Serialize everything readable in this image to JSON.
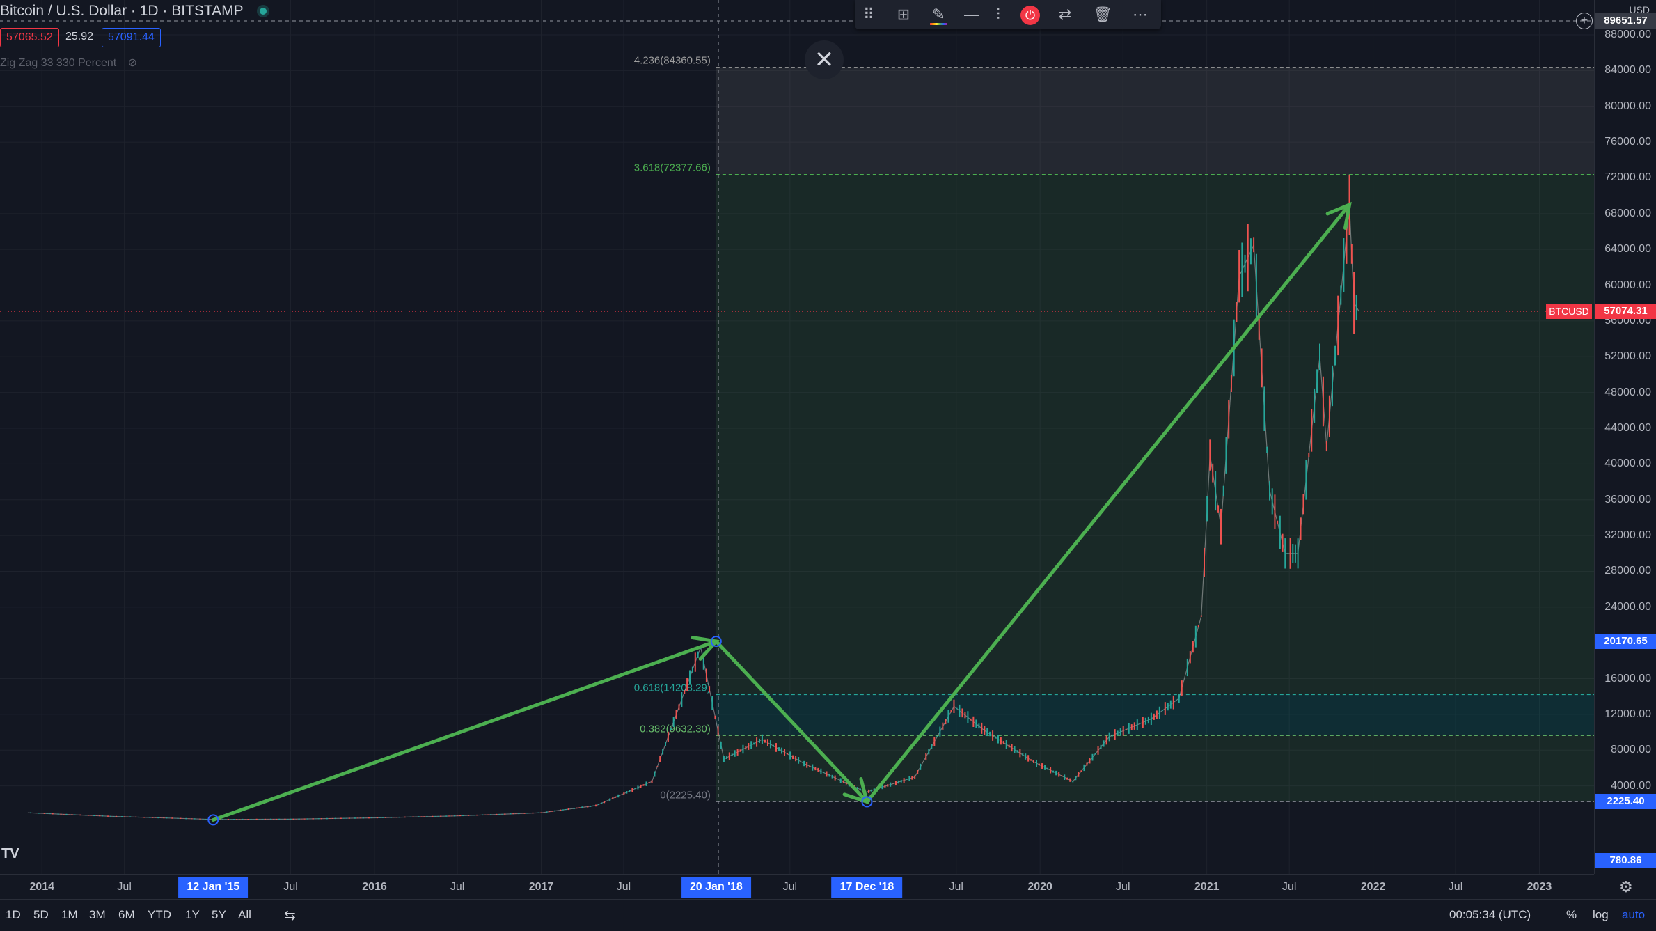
{
  "legend": {
    "title": "Bitcoin / U.S. Dollar · 1D · BITSTAMP",
    "bid": "57065.52",
    "spread": "25.92",
    "ask": "57091.44",
    "indicator": "Zig Zag 33 330 Percent",
    "status_color": "#26a69a"
  },
  "toolbar": {
    "icons": [
      "drag-handle-icon",
      "template-icon",
      "pencil-icon",
      "line-width-icon",
      "alert-icon",
      "sync-icon",
      "trash-icon",
      "more-icon"
    ]
  },
  "chart_data": {
    "type": "line",
    "symbol": "BTCUSD",
    "ylim": [
      0,
      90000
    ],
    "xlim": [
      "2013-10-01",
      "2023-05-01"
    ],
    "y_ticks": [
      "4000.00",
      "8000.00",
      "12000.00",
      "16000.00",
      "24000.00",
      "28000.00",
      "32000.00",
      "36000.00",
      "40000.00",
      "44000.00",
      "48000.00",
      "52000.00",
      "56000.00",
      "60000.00",
      "64000.00",
      "68000.00",
      "72000.00",
      "76000.00",
      "80000.00",
      "84000.00",
      "88000.00"
    ],
    "x_ticks": [
      "2014",
      "Jul",
      "Jul",
      "2016",
      "Jul",
      "2017",
      "Jul",
      "Jul",
      "Jul",
      "2020",
      "Jul",
      "2021",
      "Jul",
      "2022",
      "Jul",
      "2023"
    ],
    "x_tick_dates": [
      "2014-01-01",
      "2014-07-01",
      "2015-07-01",
      "2016-01-01",
      "2016-07-01",
      "2017-01-01",
      "2017-07-01",
      "2018-07-01",
      "2019-07-01",
      "2020-01-01",
      "2020-07-01",
      "2021-01-01",
      "2021-07-01",
      "2022-01-01",
      "2022-07-01",
      "2023-01-01"
    ],
    "price_series": {
      "x": [
        "2013-12-01",
        "2014-06-01",
        "2015-01-14",
        "2015-07-01",
        "2016-01-01",
        "2016-07-01",
        "2017-01-01",
        "2017-05-01",
        "2017-09-01",
        "2017-12-17",
        "2018-02-06",
        "2018-05-01",
        "2018-08-01",
        "2018-12-15",
        "2019-04-01",
        "2019-06-26",
        "2019-09-01",
        "2019-12-18",
        "2020-03-13",
        "2020-06-01",
        "2020-09-01",
        "2020-11-01",
        "2020-12-20",
        "2021-01-08",
        "2021-02-01",
        "2021-03-13",
        "2021-04-14",
        "2021-05-19",
        "2021-06-22",
        "2021-07-20",
        "2021-09-06",
        "2021-09-21",
        "2021-11-10",
        "2021-11-20",
        "2021-12-01"
      ],
      "y": [
        1000,
        600,
        250,
        280,
        430,
        650,
        1000,
        1800,
        4500,
        19500,
        7000,
        9200,
        6500,
        3300,
        5000,
        12900,
        10200,
        6700,
        4500,
        9500,
        11500,
        13800,
        23000,
        41000,
        33000,
        61000,
        64500,
        37000,
        30000,
        30000,
        52000,
        42000,
        69000,
        58000,
        57074
      ]
    },
    "zigzag": {
      "x": [
        "2015-01-12",
        "2018-01-20",
        "2018-12-17",
        "2021-11-10"
      ],
      "y": [
        200,
        20170.65,
        2225.4,
        69000
      ]
    },
    "fib_levels": [
      {
        "label": "0(2225.40)",
        "value": 2225.4
      },
      {
        "label": "0.382(9632.30)",
        "value": 9632.3
      },
      {
        "label": "0.618(14208.29)",
        "value": 14208.29
      },
      {
        "label": "3.618(72377.66)",
        "value": 72377.66
      },
      {
        "label": "4.236(84360.55)",
        "value": 84360.55
      }
    ],
    "fib_start": "2018-01-20",
    "current_price": "57074.31",
    "crosshair_price": "89651.57",
    "y_flags": [
      {
        "value": 20170.65,
        "label": "20170.65",
        "color": "#2962ff"
      },
      {
        "value": 2225.4,
        "label": "2225.40",
        "color": "#2962ff"
      },
      {
        "value": 780.86,
        "label": "780.86",
        "color": "#2962ff"
      }
    ],
    "x_flags": [
      {
        "date": "2015-01-12",
        "label": "12 Jan '15"
      },
      {
        "date": "2018-01-20",
        "label": "20 Jan '18"
      },
      {
        "date": "2018-12-17",
        "label": "17 Dec '18"
      }
    ],
    "colors": {
      "up": "#26a69a",
      "down": "#ef5350",
      "zigzag": "#4caf50",
      "price_line": "#f23645"
    }
  },
  "axis": {
    "currency": "USD"
  },
  "bottom": {
    "ranges": [
      "1D",
      "5D",
      "1M",
      "3M",
      "6M",
      "YTD",
      "1Y",
      "5Y",
      "All"
    ],
    "clock": "00:05:34 (UTC)",
    "percent": "%",
    "log": "log",
    "auto": "auto"
  }
}
